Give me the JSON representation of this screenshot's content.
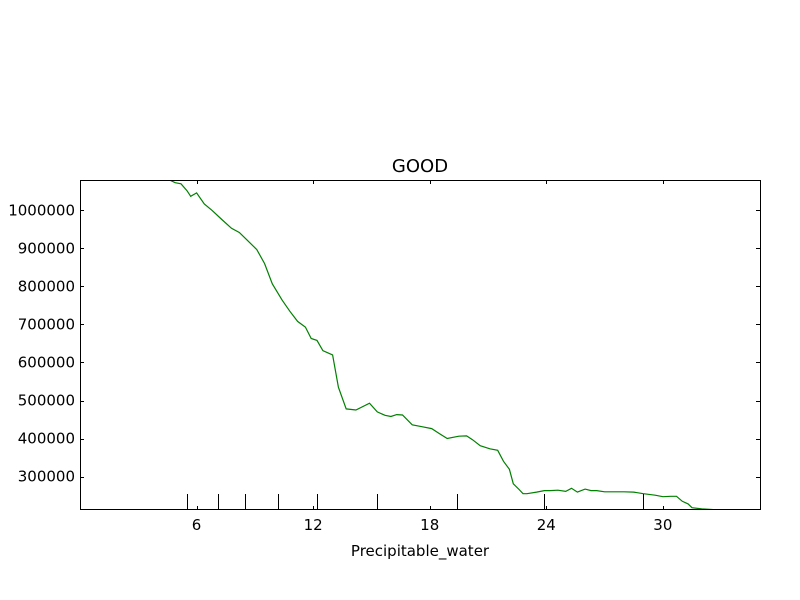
{
  "chart_data": {
    "type": "line",
    "title": "GOOD",
    "xlabel": "Precipitable_water",
    "ylabel": "",
    "xlim": [
      0.0,
      35.0
    ],
    "ylim": [
      212000,
      1080000
    ],
    "grid": false,
    "x_ticks": [
      6,
      12,
      18,
      24,
      30
    ],
    "x_tick_labels": [
      "6",
      "12",
      "18",
      "24",
      "30"
    ],
    "y_ticks": [
      300000,
      400000,
      500000,
      600000,
      700000,
      800000,
      900000,
      1000000
    ],
    "y_tick_labels": [
      "300000",
      "400000",
      "500000",
      "600000",
      "700000",
      "800000",
      "900000",
      "1000000"
    ],
    "rug_x": [
      5.5,
      7.1,
      8.5,
      10.2,
      12.2,
      15.3,
      19.4,
      23.9,
      29.0
    ],
    "series": [
      {
        "color": "#008000",
        "x": [
          4.6,
          4.9,
          5.2,
          5.5,
          5.7,
          6.0,
          6.4,
          6.8,
          7.3,
          7.8,
          8.2,
          8.6,
          9.1,
          9.5,
          9.9,
          10.4,
          10.8,
          11.2,
          11.6,
          11.9,
          12.2,
          12.5,
          13.0,
          13.3,
          13.7,
          14.2,
          14.9,
          15.3,
          15.7,
          16.0,
          16.3,
          16.6,
          17.1,
          17.6,
          18.1,
          18.5,
          18.9,
          19.5,
          19.9,
          20.2,
          20.6,
          21.1,
          21.5,
          21.8,
          22.1,
          22.3,
          22.6,
          22.8,
          23.0,
          23.5,
          23.9,
          24.2,
          24.6,
          25.0,
          25.3,
          25.6,
          26.0,
          26.3,
          26.6,
          27.0,
          28.0,
          28.5,
          29.0,
          29.6,
          30.0,
          30.4,
          30.7,
          31.0,
          31.3,
          31.5,
          32.0,
          32.6
        ],
        "y": [
          1080000,
          1073000,
          1070000,
          1052000,
          1037000,
          1046000,
          1017000,
          1000000,
          976000,
          953000,
          942000,
          922000,
          897000,
          860000,
          807000,
          764000,
          735000,
          708000,
          693000,
          663000,
          658000,
          631000,
          620000,
          535000,
          478000,
          475000,
          493000,
          470000,
          461000,
          458000,
          463000,
          462000,
          436000,
          431000,
          426000,
          413000,
          400000,
          406000,
          407000,
          397000,
          381000,
          373000,
          369000,
          340000,
          319000,
          281000,
          266000,
          255000,
          255000,
          259000,
          263000,
          263000,
          264000,
          261000,
          269000,
          259000,
          267000,
          263000,
          263000,
          260000,
          260000,
          259000,
          255000,
          251000,
          247000,
          248000,
          248000,
          235000,
          228000,
          218000,
          215000,
          213000
        ]
      }
    ]
  }
}
